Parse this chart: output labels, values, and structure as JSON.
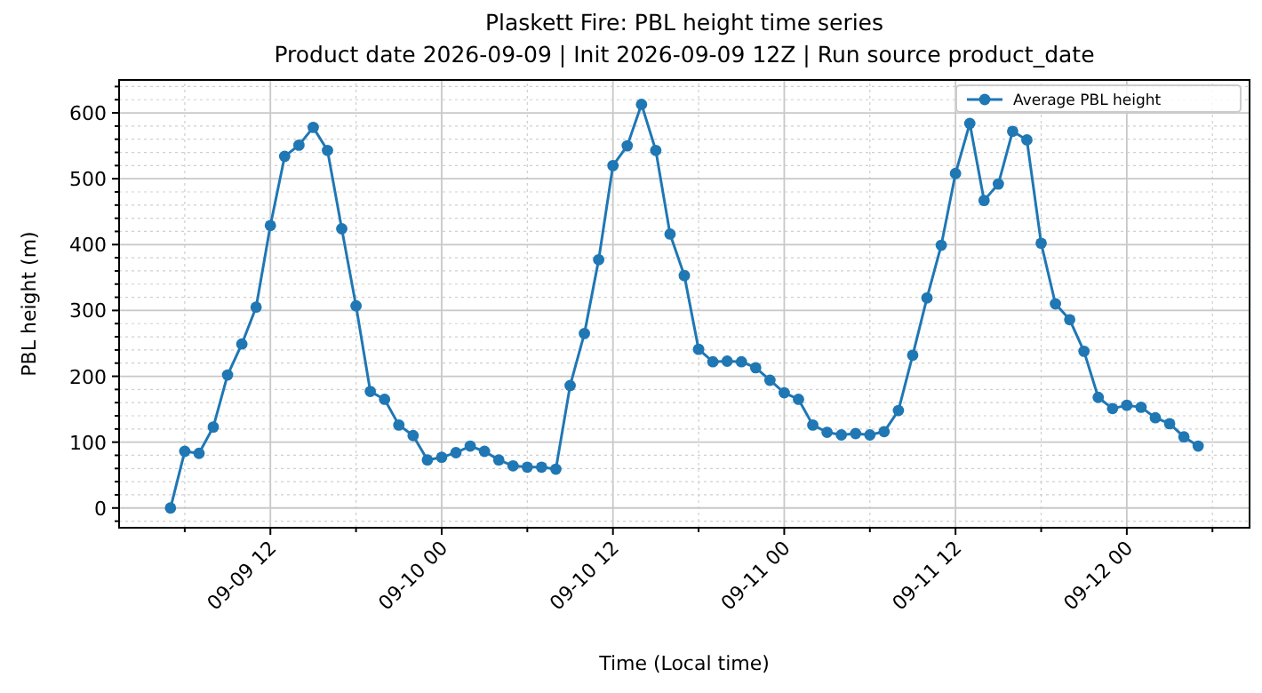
{
  "chart_data": {
    "type": "line",
    "title": "Plaskett Fire: PBL height time series",
    "subtitle": "Product date 2026-09-09 | Init 2026-09-09 12Z | Run source product_date",
    "xlabel": "Time (Local time)",
    "ylabel": "PBL height (m)",
    "x": [
      "2026-09-09T05:00",
      "2026-09-09T06:00",
      "2026-09-09T07:00",
      "2026-09-09T08:00",
      "2026-09-09T09:00",
      "2026-09-09T10:00",
      "2026-09-09T11:00",
      "2026-09-09T12:00",
      "2026-09-09T13:00",
      "2026-09-09T14:00",
      "2026-09-09T15:00",
      "2026-09-09T16:00",
      "2026-09-09T17:00",
      "2026-09-09T18:00",
      "2026-09-09T19:00",
      "2026-09-09T20:00",
      "2026-09-09T21:00",
      "2026-09-09T22:00",
      "2026-09-09T23:00",
      "2026-09-10T00:00",
      "2026-09-10T01:00",
      "2026-09-10T02:00",
      "2026-09-10T03:00",
      "2026-09-10T04:00",
      "2026-09-10T05:00",
      "2026-09-10T06:00",
      "2026-09-10T07:00",
      "2026-09-10T08:00",
      "2026-09-10T09:00",
      "2026-09-10T10:00",
      "2026-09-10T11:00",
      "2026-09-10T12:00",
      "2026-09-10T13:00",
      "2026-09-10T14:00",
      "2026-09-10T15:00",
      "2026-09-10T16:00",
      "2026-09-10T17:00",
      "2026-09-10T18:00",
      "2026-09-10T19:00",
      "2026-09-10T20:00",
      "2026-09-10T21:00",
      "2026-09-10T22:00",
      "2026-09-10T23:00",
      "2026-09-11T00:00",
      "2026-09-11T01:00",
      "2026-09-11T02:00",
      "2026-09-11T03:00",
      "2026-09-11T04:00",
      "2026-09-11T05:00",
      "2026-09-11T06:00",
      "2026-09-11T07:00",
      "2026-09-11T08:00",
      "2026-09-11T09:00",
      "2026-09-11T10:00",
      "2026-09-11T11:00",
      "2026-09-11T12:00",
      "2026-09-11T13:00",
      "2026-09-11T14:00",
      "2026-09-11T15:00",
      "2026-09-11T16:00",
      "2026-09-11T17:00",
      "2026-09-11T18:00",
      "2026-09-11T19:00",
      "2026-09-11T20:00",
      "2026-09-11T21:00",
      "2026-09-11T22:00",
      "2026-09-11T23:00",
      "2026-09-12T00:00",
      "2026-09-12T01:00",
      "2026-09-12T02:00",
      "2026-09-12T03:00",
      "2026-09-12T04:00",
      "2026-09-12T05:00"
    ],
    "series": [
      {
        "name": "Average PBL height",
        "color": "#1f77b4",
        "values": [
          0,
          86,
          83,
          123,
          202,
          249,
          305,
          429,
          534,
          551,
          578,
          543,
          424,
          307,
          177,
          165,
          126,
          110,
          73,
          77,
          84,
          94,
          86,
          73,
          64,
          62,
          62,
          59,
          186,
          265,
          377,
          520,
          550,
          613,
          543,
          416,
          353,
          241,
          222,
          223,
          222,
          213,
          194,
          175,
          165,
          126,
          115,
          111,
          113,
          111,
          116,
          148,
          232,
          319,
          399,
          508,
          584,
          467,
          492,
          572,
          559,
          402,
          310,
          286,
          238,
          168,
          151,
          156,
          153,
          137,
          128,
          108,
          94
        ]
      }
    ],
    "xlim": [
      "2026-09-09T01:24",
      "2026-09-12T08:36"
    ],
    "xticks": [
      {
        "value": "2026-09-09T06:00",
        "label": null
      },
      {
        "value": "2026-09-09T12:00",
        "label": "09-09 12"
      },
      {
        "value": "2026-09-09T18:00",
        "label": null
      },
      {
        "value": "2026-09-10T00:00",
        "label": "09-10 00"
      },
      {
        "value": "2026-09-10T06:00",
        "label": null
      },
      {
        "value": "2026-09-10T12:00",
        "label": "09-10 12"
      },
      {
        "value": "2026-09-10T18:00",
        "label": null
      },
      {
        "value": "2026-09-11T00:00",
        "label": "09-11 00"
      },
      {
        "value": "2026-09-11T06:00",
        "label": null
      },
      {
        "value": "2026-09-11T12:00",
        "label": "09-11 12"
      },
      {
        "value": "2026-09-11T18:00",
        "label": null
      },
      {
        "value": "2026-09-12T00:00",
        "label": "09-12 00"
      },
      {
        "value": "2026-09-12T06:00",
        "label": null
      }
    ],
    "ylim": [
      -30,
      650
    ],
    "yticks": [
      {
        "value": -20,
        "label": null
      },
      0,
      {
        "value": 20,
        "label": null
      },
      {
        "value": 40,
        "label": null
      },
      {
        "value": 60,
        "label": null
      },
      {
        "value": 80,
        "label": null
      },
      100,
      {
        "value": 120,
        "label": null
      },
      {
        "value": 140,
        "label": null
      },
      {
        "value": 160,
        "label": null
      },
      {
        "value": 180,
        "label": null
      },
      200,
      {
        "value": 220,
        "label": null
      },
      {
        "value": 240,
        "label": null
      },
      {
        "value": 260,
        "label": null
      },
      {
        "value": 280,
        "label": null
      },
      300,
      {
        "value": 320,
        "label": null
      },
      {
        "value": 340,
        "label": null
      },
      {
        "value": 360,
        "label": null
      },
      {
        "value": 380,
        "label": null
      },
      400,
      {
        "value": 420,
        "label": null
      },
      {
        "value": 440,
        "label": null
      },
      {
        "value": 460,
        "label": null
      },
      {
        "value": 480,
        "label": null
      },
      500,
      {
        "value": 520,
        "label": null
      },
      {
        "value": 540,
        "label": null
      },
      {
        "value": 560,
        "label": null
      },
      {
        "value": 580,
        "label": null
      },
      600,
      {
        "value": 620,
        "label": null
      },
      {
        "value": 640,
        "label": null
      }
    ],
    "grid": true,
    "legend": "top right",
    "marker": "circle",
    "line_style": "solid"
  }
}
